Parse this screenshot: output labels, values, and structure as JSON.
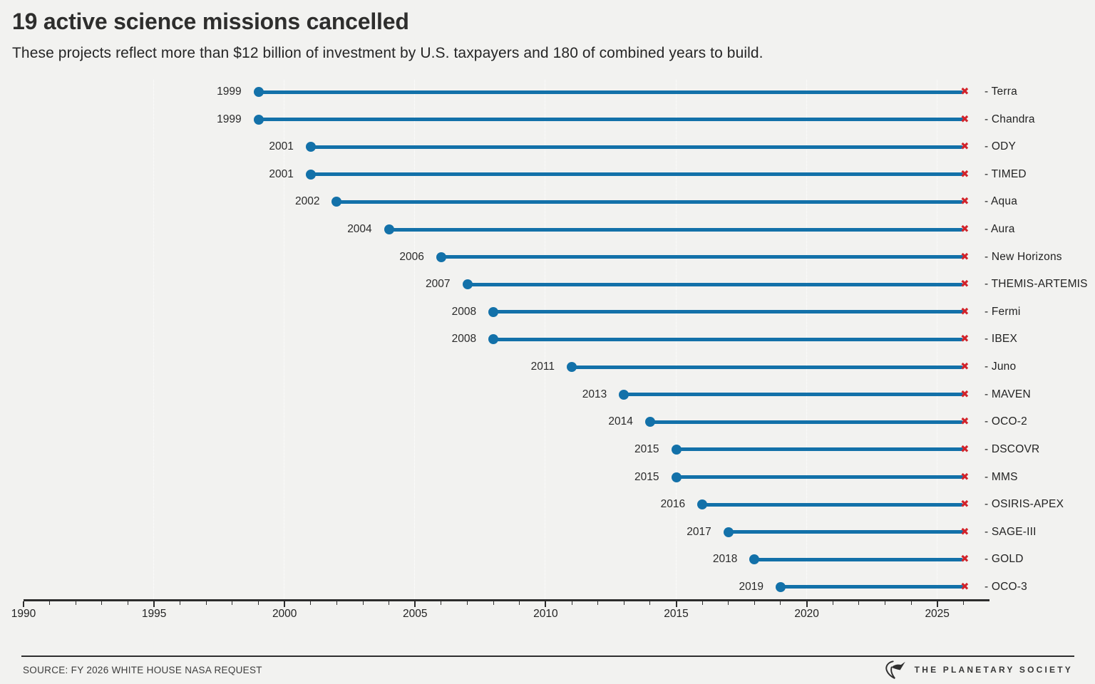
{
  "header": {
    "title": "19 active science missions cancelled",
    "subtitle": "These projects reflect more than $12 billion of investment by U.S. taxpayers and 180 of combined years to build."
  },
  "footer": {
    "source": "SOURCE: FY 2026 WHITE HOUSE NASA REQUEST",
    "brand": "THE PLANETARY SOCIETY"
  },
  "icons": {
    "cancel_x": "✖"
  },
  "colors": {
    "background": "#f2f2f0",
    "blue": "#1371a9",
    "red": "#d2232a",
    "ink": "#2e2e2d",
    "axis": "#2c2c2c"
  },
  "chart_data": {
    "type": "bar",
    "variant": "horizontal-dumbbell-timeline",
    "title": "19 active science missions cancelled",
    "xlabel": "",
    "ylabel": "",
    "x_range": [
      1990,
      2027
    ],
    "x_major_ticks": [
      1990,
      1995,
      2000,
      2005,
      2010,
      2015,
      2020,
      2025
    ],
    "minor_tick_every_years": 1,
    "gridline_years": [
      1995,
      2000,
      2005,
      2010,
      2015,
      2020,
      2025
    ],
    "grid": "vertical-dotted",
    "legend": "none",
    "start_marker": "dot",
    "end_marker": "x-cross",
    "cancel_year": 2026,
    "missions": [
      {
        "name": "Terra",
        "label": "- Terra",
        "start": 1999,
        "start_label": "1999",
        "end": 2026
      },
      {
        "name": "Chandra",
        "label": "- Chandra",
        "start": 1999,
        "start_label": "1999",
        "end": 2026
      },
      {
        "name": "ODY",
        "label": "- ODY",
        "start": 2001,
        "start_label": "2001",
        "end": 2026
      },
      {
        "name": "TIMED",
        "label": "- TIMED",
        "start": 2001,
        "start_label": "2001",
        "end": 2026
      },
      {
        "name": "Aqua",
        "label": "- Aqua",
        "start": 2002,
        "start_label": "2002",
        "end": 2026
      },
      {
        "name": "Aura",
        "label": "- Aura",
        "start": 2004,
        "start_label": "2004",
        "end": 2026
      },
      {
        "name": "New Horizons",
        "label": "- New Horizons",
        "start": 2006,
        "start_label": "2006",
        "end": 2026
      },
      {
        "name": "THEMIS-ARTEMIS",
        "label": "- THEMIS-ARTEMIS",
        "start": 2007,
        "start_label": "2007",
        "end": 2026
      },
      {
        "name": "Fermi",
        "label": "- Fermi",
        "start": 2008,
        "start_label": "2008",
        "end": 2026
      },
      {
        "name": "IBEX",
        "label": "- IBEX",
        "start": 2008,
        "start_label": "2008",
        "end": 2026
      },
      {
        "name": "Juno",
        "label": "- Juno",
        "start": 2011,
        "start_label": "2011",
        "end": 2026
      },
      {
        "name": "MAVEN",
        "label": "- MAVEN",
        "start": 2013,
        "start_label": "2013",
        "end": 2026
      },
      {
        "name": "OCO-2",
        "label": "- OCO-2",
        "start": 2014,
        "start_label": "2014",
        "end": 2026
      },
      {
        "name": "DSCOVR",
        "label": "- DSCOVR",
        "start": 2015,
        "start_label": "2015",
        "end": 2026
      },
      {
        "name": "MMS",
        "label": "- MMS",
        "start": 2015,
        "start_label": "2015",
        "end": 2026
      },
      {
        "name": "OSIRIS-APEX",
        "label": "- OSIRIS-APEX",
        "start": 2016,
        "start_label": "2016",
        "end": 2026
      },
      {
        "name": "SAGE-III",
        "label": "- SAGE-III",
        "start": 2017,
        "start_label": "2017",
        "end": 2026
      },
      {
        "name": "GOLD",
        "label": "- GOLD",
        "start": 2018,
        "start_label": "2018",
        "end": 2026
      },
      {
        "name": "OCO-3",
        "label": "- OCO-3",
        "start": 2019,
        "start_label": "2019",
        "end": 2026
      }
    ]
  }
}
